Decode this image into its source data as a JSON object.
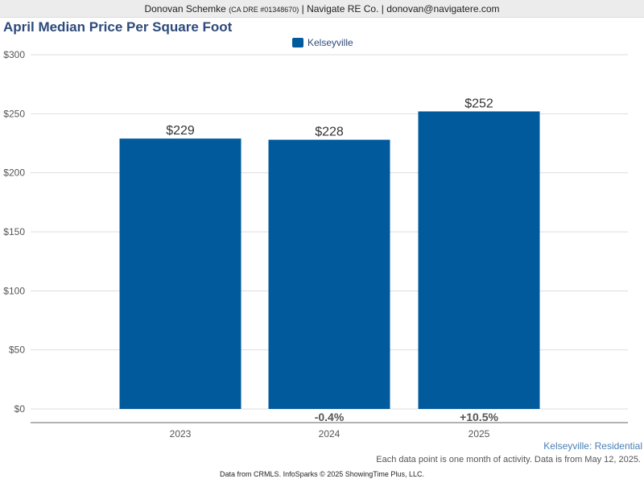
{
  "header": {
    "agent_name": "Donovan Schemke",
    "license": "(CA DRE #01348670)",
    "separator1": "|",
    "company": "Navigate RE Co.",
    "separator2": "|",
    "email": "donovan@navigatere.com"
  },
  "colors": {
    "bar": "#005a9c",
    "title": "#2d4a7a",
    "grid": "#dddddd",
    "axis": "#555555"
  },
  "chart_data": {
    "type": "bar",
    "title": "April Median Price Per Square Foot",
    "categories": [
      "2023",
      "2024",
      "2025"
    ],
    "series": [
      {
        "name": "Kelseyville",
        "values": [
          229,
          228,
          252
        ]
      }
    ],
    "value_labels": [
      "$229",
      "$228",
      "$252"
    ],
    "change_labels": [
      "",
      "-0.4%",
      "+10.5%"
    ],
    "y_ticks": [
      0,
      50,
      100,
      150,
      200,
      250,
      300
    ],
    "y_tick_labels": [
      "$0",
      "$50",
      "$100",
      "$150",
      "$200",
      "$250",
      "$300"
    ],
    "ylim": [
      0,
      300
    ],
    "grid": true,
    "legend_position": "top-center"
  },
  "footer": {
    "series_caption": "Kelseyville: Residential",
    "note": "Each data point is one month of activity. Data is from May 12, 2025.",
    "credit": "Data from CRMLS. InfoSparks © 2025 ShowingTime Plus, LLC."
  }
}
